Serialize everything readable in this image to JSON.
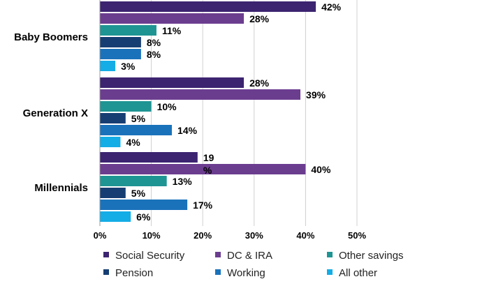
{
  "chart_data": {
    "type": "bar",
    "orientation": "horizontal",
    "categories": [
      "Baby Boomers",
      "Generation X",
      "Millennials"
    ],
    "series": [
      {
        "name": "Social Security",
        "color": "#3C2470",
        "values": [
          42,
          28,
          19
        ],
        "labels": [
          "42%",
          "28%",
          "19%"
        ]
      },
      {
        "name": "DC & IRA",
        "color": "#6B3D8F",
        "values": [
          28,
          39,
          40
        ],
        "labels": [
          "28%",
          "39%",
          "40%"
        ]
      },
      {
        "name": "Other savings",
        "color": "#1E9493",
        "values": [
          11,
          10,
          13
        ],
        "labels": [
          "11%",
          "10%",
          "13%"
        ]
      },
      {
        "name": "Pension",
        "color": "#163E72",
        "values": [
          8,
          5,
          5
        ],
        "labels": [
          "8%",
          "5%",
          "5%"
        ]
      },
      {
        "name": "Working",
        "color": "#1A72BA",
        "values": [
          8,
          14,
          17
        ],
        "labels": [
          "8%",
          "14%",
          "17%"
        ]
      },
      {
        "name": "All other",
        "color": "#14ADE6",
        "values": [
          3,
          4,
          6
        ],
        "labels": [
          "3%",
          "4%",
          "6%"
        ]
      }
    ],
    "xlim": [
      0,
      50
    ],
    "x_ticks": [
      "0%",
      "10%",
      "20%",
      "30%",
      "40%",
      "50%"
    ],
    "grid": true,
    "legend_position": "bottom",
    "title": "",
    "xlabel": "",
    "ylabel": ""
  }
}
